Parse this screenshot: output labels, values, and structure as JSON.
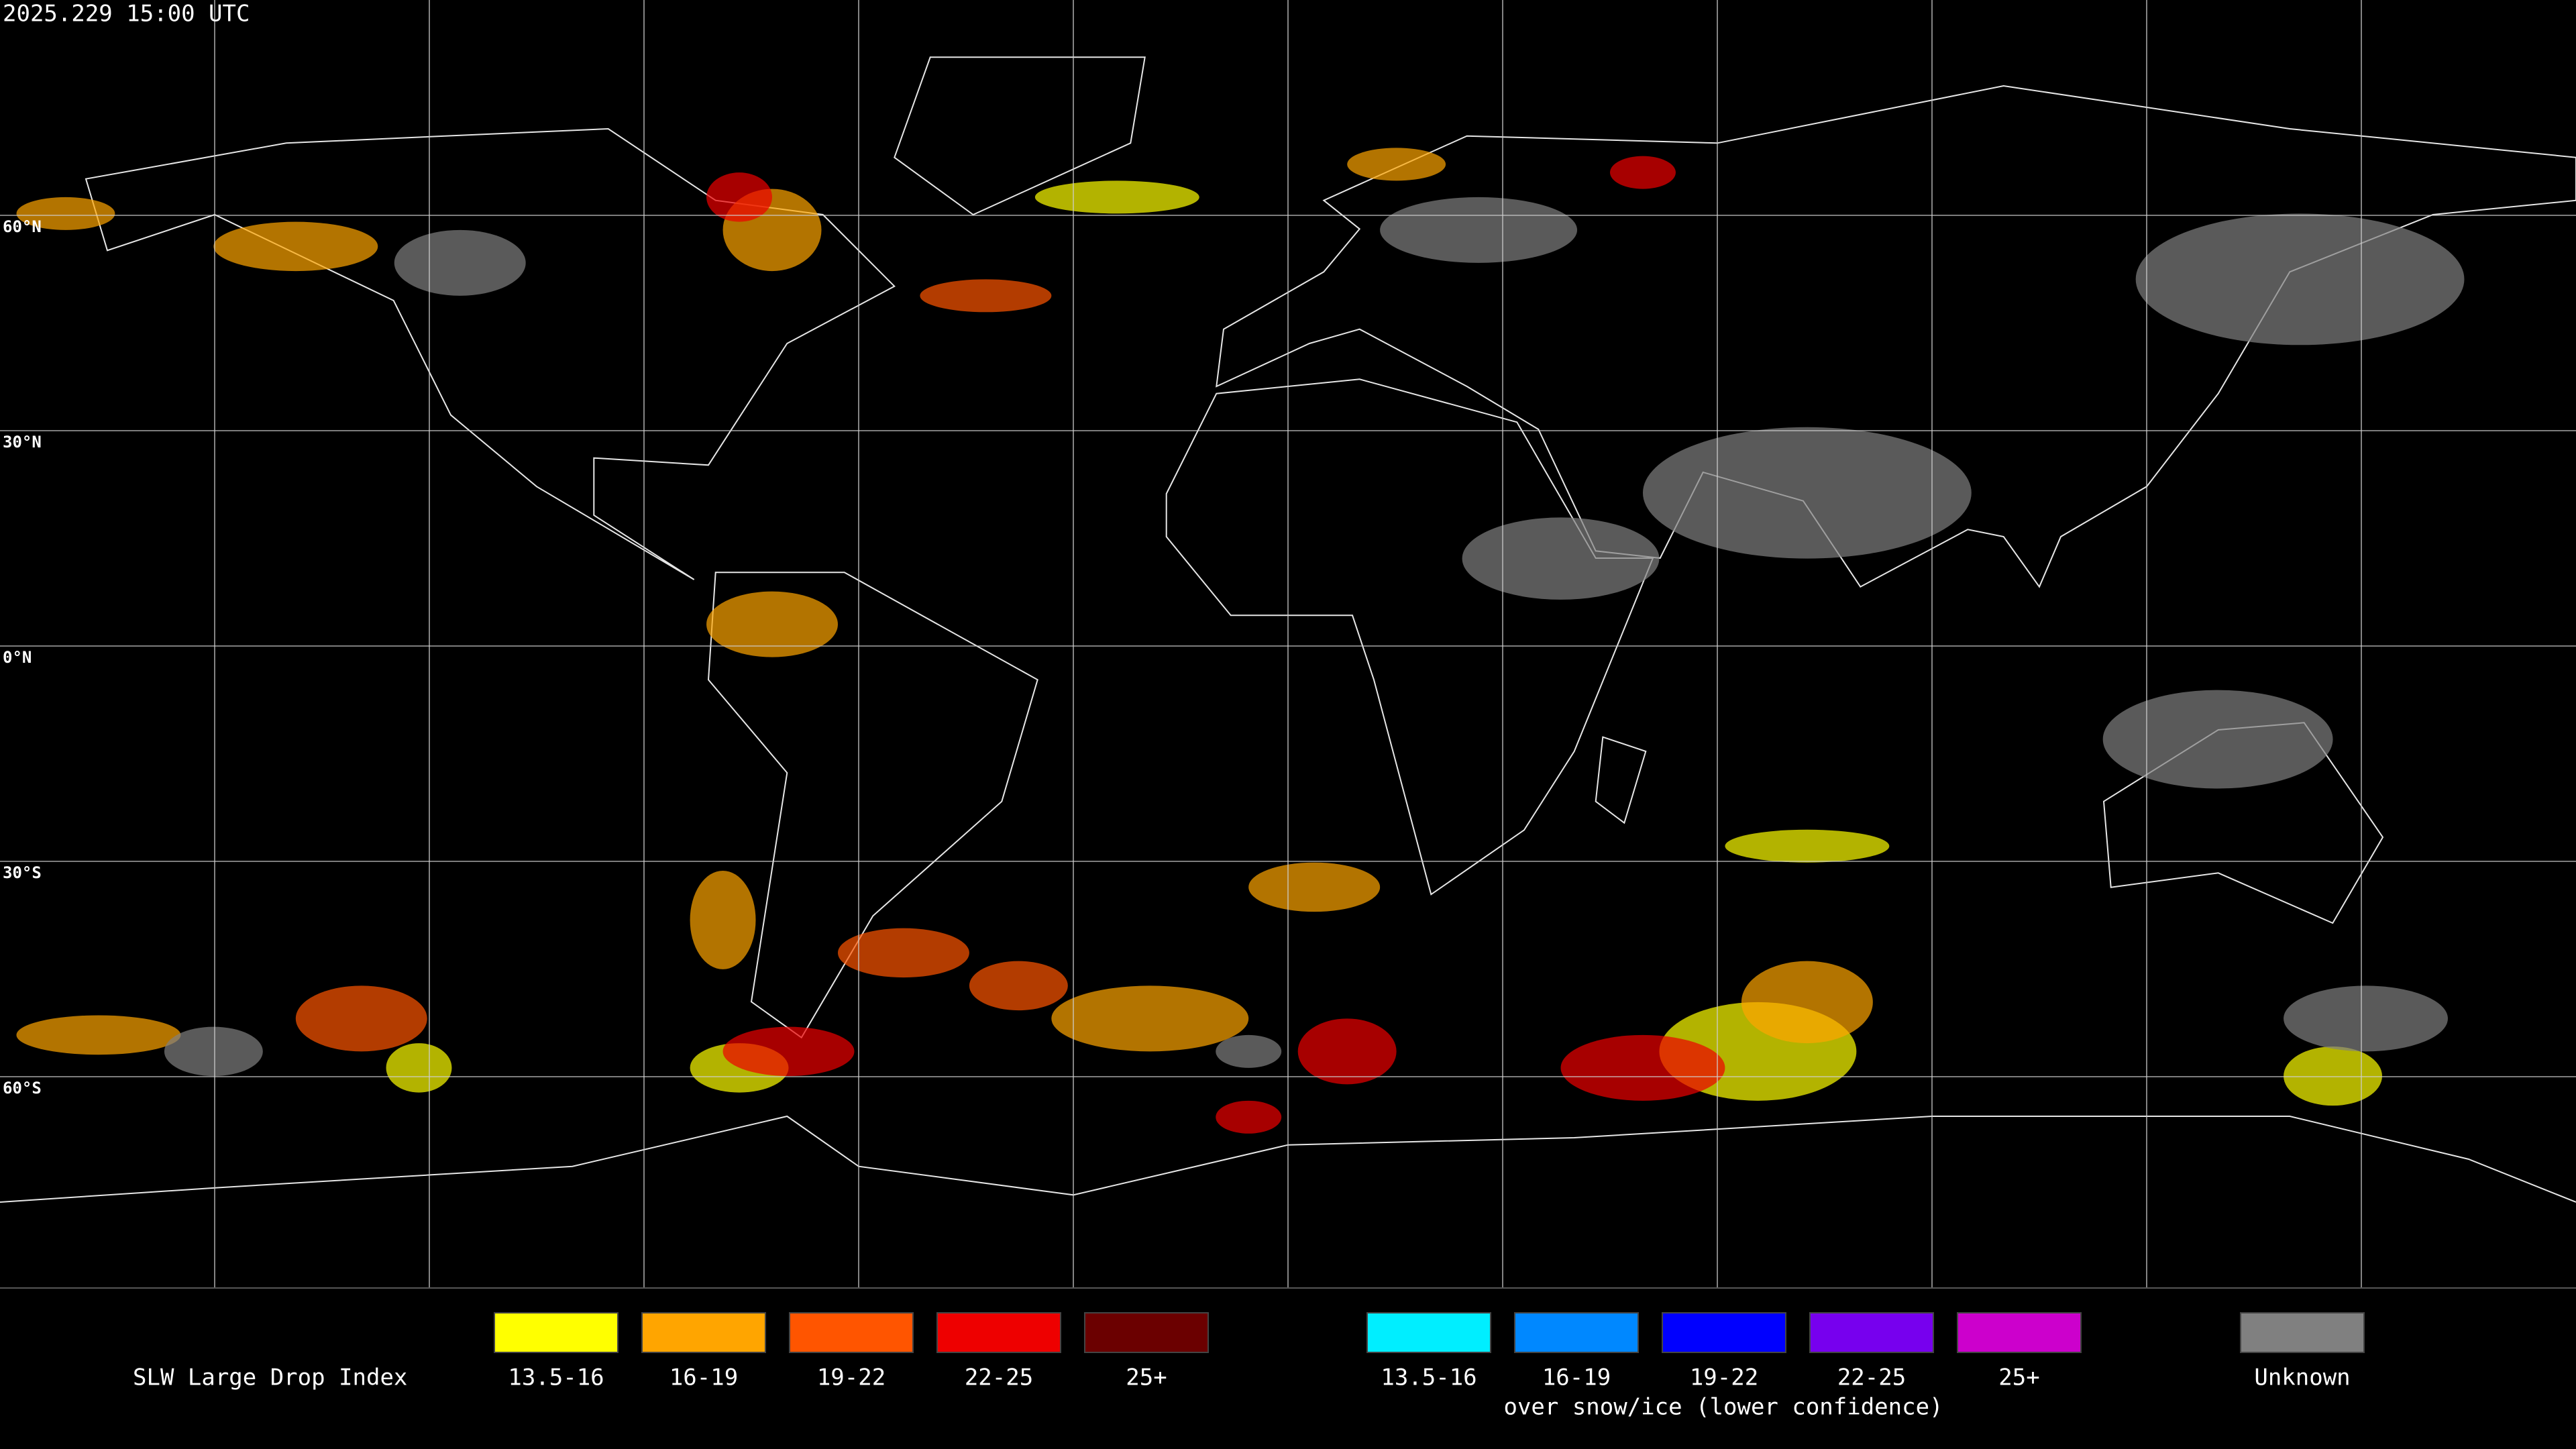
{
  "map": {
    "timestamp": "2025.229 15:00 UTC",
    "latitude_labels": [
      "60°N",
      "30°N",
      "0°N",
      "30°S",
      "60°S"
    ]
  },
  "legend": {
    "title": "SLW Large Drop Index",
    "groups": [
      {
        "items": [
          {
            "label": "13.5-16",
            "color": "#ffff00"
          },
          {
            "label": "16-19",
            "color": "#ffa500"
          },
          {
            "label": "19-22",
            "color": "#ff5500"
          },
          {
            "label": "22-25",
            "color": "#ee0000"
          },
          {
            "label": "25+",
            "color": "#6b0000"
          }
        ]
      },
      {
        "items": [
          {
            "label": "13.5-16",
            "color": "#00eeff"
          },
          {
            "label": "16-19",
            "color": "#0088ff"
          },
          {
            "label": "19-22",
            "color": "#0000ff"
          },
          {
            "label": "22-25",
            "color": "#7700ee"
          },
          {
            "label": "25+",
            "color": "#cc00cc"
          }
        ],
        "note": "over snow/ice (lower confidence)"
      },
      {
        "items": [
          {
            "label": "Unknown",
            "color": "#808080"
          }
        ]
      }
    ]
  }
}
